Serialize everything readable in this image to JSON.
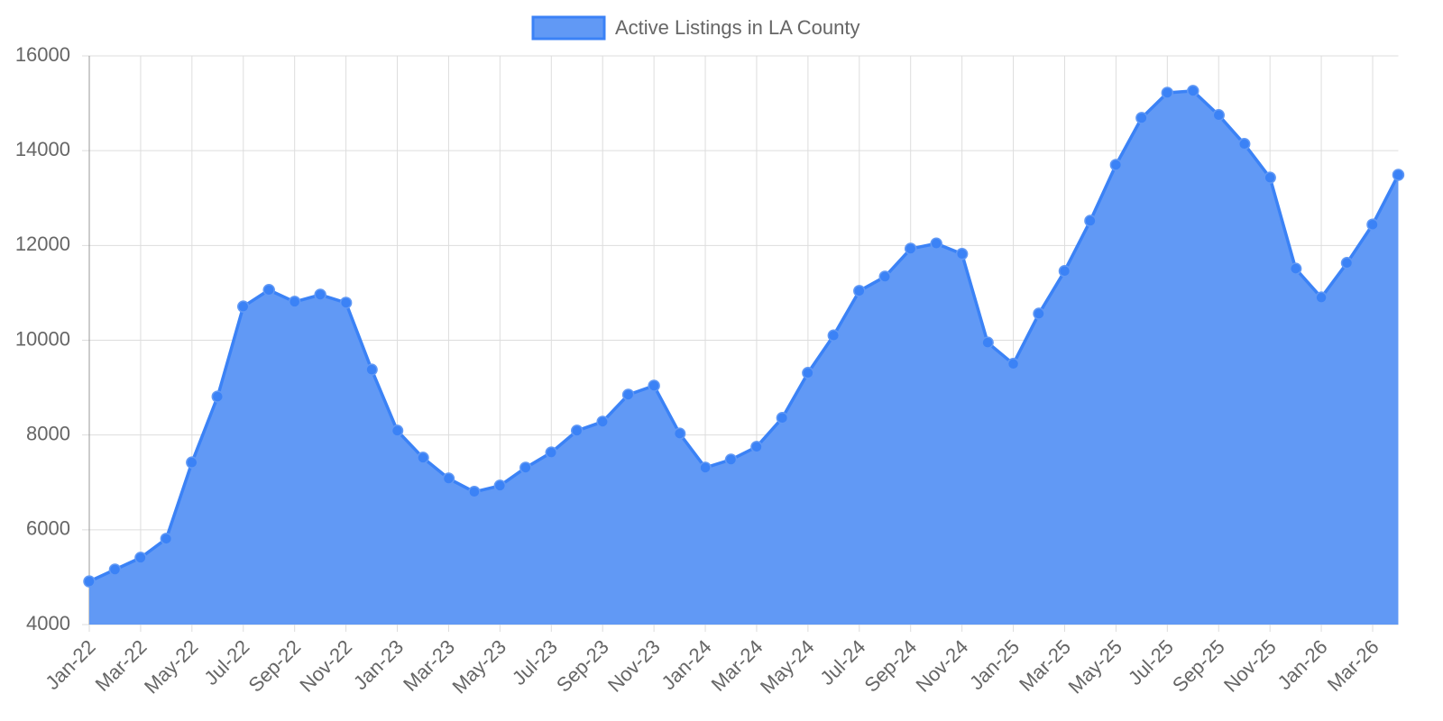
{
  "chart_data": {
    "type": "area",
    "categories": [
      "Jan-22",
      null,
      "Mar-22",
      null,
      "May-22",
      null,
      "Jul-22",
      null,
      "Sep-22",
      null,
      "Nov-22",
      null,
      "Jan-23",
      null,
      "Mar-23",
      null,
      "May-23",
      null,
      "Jul-23",
      null,
      "Sep-23",
      null,
      "Nov-23",
      null,
      "Jan-24",
      null,
      "Mar-24",
      null,
      "May-24",
      null,
      "Jul-24",
      null,
      "Sep-24",
      null,
      "Nov-24",
      null,
      "Jan-25",
      null,
      "Mar-25",
      null,
      "May-25",
      null,
      "Jul-25",
      null,
      "Sep-25",
      null,
      "Nov-25",
      null,
      "Jan-26",
      null,
      "Mar-26",
      null
    ],
    "series": [
      {
        "name": "Active Listings in LA County",
        "color": "#3b82f6",
        "fill": "#6199f5",
        "values": [
          4910,
          5160,
          5410,
          5810,
          7420,
          8810,
          10710,
          11060,
          10810,
          10960,
          10790,
          9380,
          8090,
          7520,
          7080,
          6800,
          6930,
          7310,
          7630,
          8090,
          8280,
          8850,
          9040,
          8030,
          7310,
          7480,
          7750,
          8360,
          9310,
          10100,
          11040,
          11340,
          11930,
          12040,
          11820,
          9950,
          9500,
          10560,
          11460,
          12520,
          13700,
          14690,
          15220,
          15260,
          14750,
          14140,
          13430,
          11510,
          10900,
          11630,
          12440,
          13490
        ]
      }
    ],
    "ylim": [
      4000,
      16000
    ],
    "yticks": [
      4000,
      6000,
      8000,
      10000,
      12000,
      14000,
      16000
    ],
    "grid": true,
    "legend": "top"
  }
}
